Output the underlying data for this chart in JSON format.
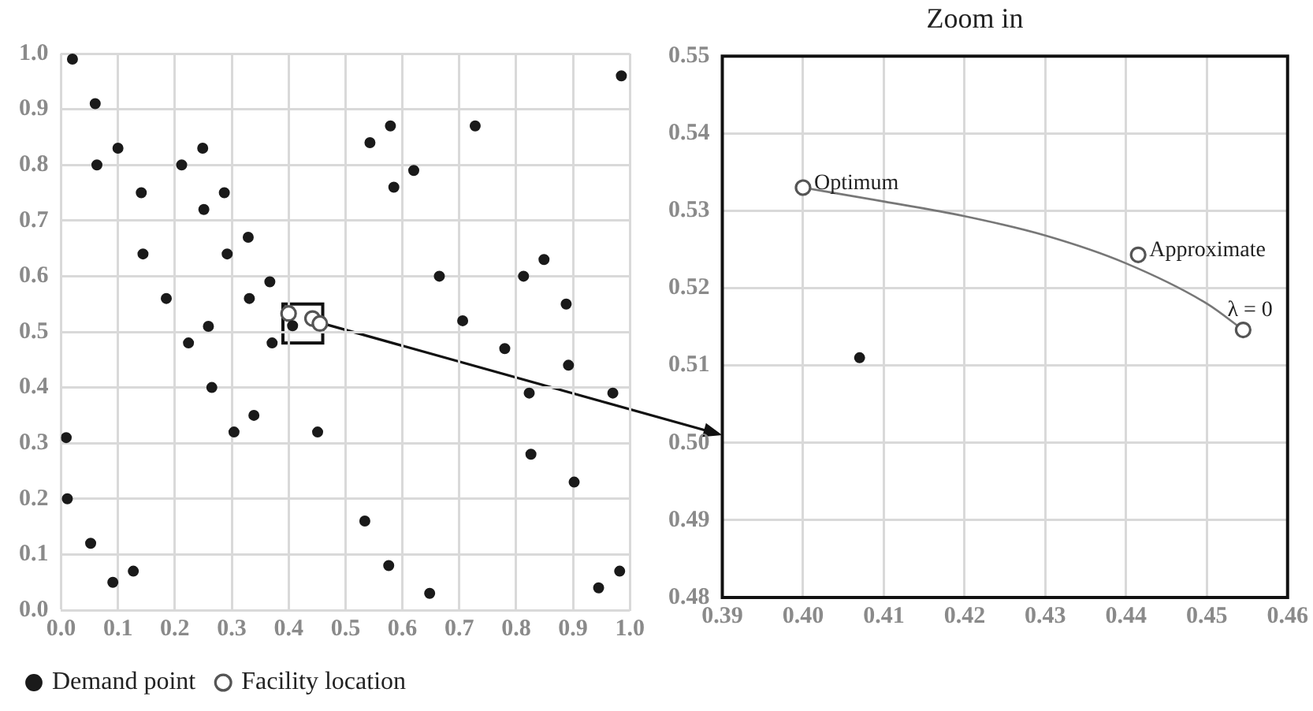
{
  "chart_data": [
    {
      "type": "scatter",
      "legend": "bottom",
      "grid": true,
      "marker": "circle",
      "xlim": [
        0,
        1
      ],
      "ylim": [
        0,
        1
      ],
      "xticks": [
        {
          "value": 0,
          "label": "0.0"
        },
        {
          "value": 0.1,
          "label": "0.1"
        },
        {
          "value": 0.2,
          "label": "0.2"
        },
        {
          "value": 0.3,
          "label": "0.3"
        },
        {
          "value": 0.4,
          "label": "0.4"
        },
        {
          "value": 0.5,
          "label": "0.5"
        },
        {
          "value": 0.6,
          "label": "0.6"
        },
        {
          "value": 0.7,
          "label": "0.7"
        },
        {
          "value": 0.8,
          "label": "0.8"
        },
        {
          "value": 0.9,
          "label": "0.9"
        },
        {
          "value": 1,
          "label": "1.0"
        }
      ],
      "yticks": [
        {
          "value": 0,
          "label": "0.0"
        },
        {
          "value": 0.1,
          "label": "0.1"
        },
        {
          "value": 0.2,
          "label": "0.2"
        },
        {
          "value": 0.3,
          "label": "0.3"
        },
        {
          "value": 0.4,
          "label": "0.4"
        },
        {
          "value": 0.5,
          "label": "0.5"
        },
        {
          "value": 0.6,
          "label": "0.6"
        },
        {
          "value": 0.7,
          "label": "0.7"
        },
        {
          "value": 0.8,
          "label": "0.8"
        },
        {
          "value": 0.9,
          "label": "0.9"
        },
        {
          "value": 1,
          "label": "1.0"
        }
      ],
      "series": [
        {
          "name": "Demand point",
          "color": "#1a1a1a",
          "x": [
            0.02,
            0.06,
            0.063,
            0.1,
            0.141,
            0.144,
            0.185,
            0.212,
            0.249,
            0.251,
            0.287,
            0.292,
            0.329,
            0.331,
            0.367,
            0.985,
            0.579,
            0.543,
            0.728,
            0.62,
            0.585,
            0.665,
            0.813,
            0.849,
            0.888,
            0.706,
            0.259,
            0.224,
            0.265,
            0.304,
            0.339,
            0.371,
            0.407,
            0.451,
            0.009,
            0.011,
            0.052,
            0.091,
            0.127,
            0.78,
            0.892,
            0.97,
            0.823,
            0.826,
            0.902,
            0.534,
            0.576,
            0.648,
            0.945,
            0.982
          ],
          "values": [
            0.99,
            0.91,
            0.8,
            0.83,
            0.75,
            0.64,
            0.56,
            0.8,
            0.83,
            0.72,
            0.75,
            0.64,
            0.67,
            0.56,
            0.59,
            0.96,
            0.87,
            0.84,
            0.87,
            0.79,
            0.76,
            0.6,
            0.6,
            0.63,
            0.55,
            0.52,
            0.51,
            0.48,
            0.4,
            0.32,
            0.35,
            0.48,
            0.511,
            0.32,
            0.31,
            0.2,
            0.12,
            0.05,
            0.07,
            0.47,
            0.44,
            0.39,
            0.39,
            0.28,
            0.23,
            0.16,
            0.08,
            0.03,
            0.04,
            0.07
          ]
        },
        {
          "name": "Facility location",
          "color": "#555555",
          "x": [
            0.4,
            0.442,
            0.455
          ],
          "values": [
            0.533,
            0.524,
            0.515
          ]
        }
      ]
    },
    {
      "type": "scatter",
      "title": "Zoom in",
      "legend": false,
      "grid": true,
      "marker": "circle",
      "xlim": [
        0.39,
        0.46
      ],
      "ylim": [
        0.48,
        0.55
      ],
      "xticks": [
        {
          "value": 0.39,
          "label": "0.39"
        },
        {
          "value": 0.4,
          "label": "0.40"
        },
        {
          "value": 0.41,
          "label": "0.41"
        },
        {
          "value": 0.42,
          "label": "0.42"
        },
        {
          "value": 0.43,
          "label": "0.43"
        },
        {
          "value": 0.44,
          "label": "0.44"
        },
        {
          "value": 0.45,
          "label": "0.45"
        },
        {
          "value": 0.46,
          "label": "0.46"
        }
      ],
      "yticks": [
        {
          "value": 0.48,
          "label": "0.48"
        },
        {
          "value": 0.49,
          "label": "0.49"
        },
        {
          "value": 0.5,
          "label": "0.50"
        },
        {
          "value": 0.51,
          "label": "0.51"
        },
        {
          "value": 0.52,
          "label": "0.52"
        },
        {
          "value": 0.53,
          "label": "0.53"
        },
        {
          "value": 0.54,
          "label": "0.54"
        },
        {
          "value": 0.55,
          "label": "0.55"
        }
      ],
      "series": [
        {
          "color": "#1a1a1a",
          "x": [
            0.407
          ],
          "values": [
            0.511
          ]
        },
        {
          "color": "#555555",
          "x": [
            0.4,
            0.4415,
            0.4545
          ],
          "values": [
            0.533,
            0.5243,
            0.5146
          ]
        },
        {
          "type": "line",
          "marker": "none",
          "color": "#777777",
          "x": [
            0.4,
            0.41,
            0.42,
            0.43,
            0.44,
            0.45,
            0.4545
          ],
          "values": [
            0.533,
            0.5312,
            0.5293,
            0.5268,
            0.5232,
            0.518,
            0.5146
          ]
        }
      ],
      "annotations": [
        {
          "text": "Optimum",
          "x": 0.4,
          "y": 0.533
        },
        {
          "text": "Approximate",
          "x": 0.4415,
          "y": 0.5243
        },
        {
          "text": "λ = 0",
          "x": 0.4545,
          "y": 0.5146
        }
      ]
    }
  ]
}
